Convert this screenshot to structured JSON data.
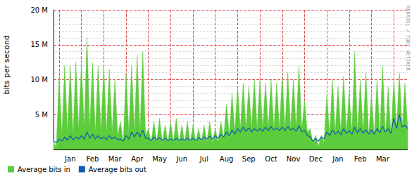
{
  "chart_data": {
    "type": "line",
    "y_label": "bits per second",
    "annotation": "RRDTOOL / TOBI OETIKER",
    "categories": [
      null,
      null,
      null,
      null,
      null,
      null,
      "Jan",
      null,
      null,
      null,
      null,
      null,
      null,
      null,
      "Feb",
      null,
      null,
      null,
      null,
      null,
      null,
      null,
      "Mar",
      null,
      null,
      null,
      null,
      null,
      null,
      null,
      "Apr",
      null,
      null,
      null,
      null,
      null,
      null,
      null,
      "May",
      null,
      null,
      null,
      null,
      null,
      null,
      null,
      "Jun",
      null,
      null,
      null,
      null,
      null,
      null,
      null,
      "Jul",
      null,
      null,
      null,
      null,
      null,
      null,
      null,
      "Aug",
      null,
      null,
      null,
      null,
      null,
      null,
      null,
      "Sep",
      null,
      null,
      null,
      null,
      null,
      null,
      null,
      "Oct",
      null,
      null,
      null,
      null,
      null,
      null,
      null,
      "Nov",
      null,
      null,
      null,
      null,
      null,
      null,
      null,
      "Dec",
      null,
      null,
      null,
      null,
      null,
      null,
      null,
      "Jan",
      null,
      null,
      null,
      null,
      null,
      null,
      null,
      "Feb",
      null,
      null,
      null,
      null,
      null,
      null,
      null,
      "Mar",
      null,
      null,
      null,
      null,
      null,
      null,
      null,
      null,
      null
    ],
    "series": [
      {
        "name": "Average bits in",
        "type": "area",
        "color": "#5ccc3c",
        "values": [
          1.2,
          0.3,
          10.5,
          2,
          12,
          2.5,
          12,
          2,
          12.5,
          3,
          12.5,
          3,
          16,
          3,
          12.5,
          2.5,
          12,
          2.5,
          12,
          2.5,
          11.5,
          2.5,
          10,
          2,
          4,
          1,
          11,
          2.5,
          12,
          2.5,
          13.5,
          2.5,
          14,
          2,
          3,
          1,
          4,
          1,
          4.5,
          1,
          3.5,
          1,
          4,
          1,
          4.5,
          1,
          3.5,
          1,
          4,
          1,
          3.5,
          1,
          3,
          1,
          3.5,
          1,
          4,
          1,
          3,
          1,
          4,
          1.5,
          6.5,
          2,
          8,
          2.5,
          9,
          3,
          9.5,
          3,
          9,
          3,
          10,
          3,
          10,
          3,
          9.5,
          3,
          10,
          3,
          9.5,
          3,
          10.5,
          3,
          11,
          3,
          10,
          3,
          12,
          3,
          7,
          2.5,
          3,
          1,
          2,
          0.5,
          2,
          1,
          8,
          2,
          10,
          2.5,
          9,
          2.5,
          10.5,
          2.5,
          8,
          2.5,
          14,
          2.5,
          10,
          2.5,
          11,
          2,
          8,
          2,
          10,
          2,
          12,
          2,
          9,
          2,
          10,
          3,
          11,
          3,
          9.5,
          3
        ]
      },
      {
        "name": "Average bits out",
        "type": "line",
        "color": "#0d5fb0",
        "values": [
          1.2,
          1.0,
          1.5,
          1.2,
          1.8,
          1.3,
          2,
          1.4,
          1.8,
          1.5,
          2,
          1.5,
          2.5,
          1.6,
          2.2,
          1.5,
          2,
          1.5,
          1.8,
          1.4,
          2,
          1.5,
          1.8,
          1.4,
          1.5,
          1.2,
          2,
          1.5,
          2.5,
          1.8,
          2.5,
          1.8,
          2.8,
          1.6,
          1.6,
          1.3,
          1.8,
          1.4,
          1.7,
          1.3,
          1.6,
          1.3,
          1.5,
          1.3,
          1.6,
          1.3,
          1.5,
          1.3,
          1.6,
          1.3,
          1.6,
          1.3,
          1.7,
          1.4,
          1.8,
          1.5,
          1.9,
          1.5,
          2,
          1.6,
          2.2,
          1.8,
          2.5,
          2,
          2.8,
          2.2,
          3,
          2.5,
          3.2,
          2.6,
          3.1,
          2.5,
          3,
          2.6,
          3,
          2.6,
          3.2,
          2.7,
          3.3,
          2.8,
          3.1,
          2.7,
          3.2,
          2.7,
          3.3,
          2.8,
          3,
          2.6,
          3.4,
          2.5,
          2.8,
          2,
          1.8,
          1.2,
          1.6,
          1.2,
          1.8,
          1.5,
          2.5,
          2,
          2.8,
          2.2,
          2.6,
          2.1,
          3,
          2.3,
          2.7,
          2.2,
          3.2,
          2.4,
          3,
          2.3,
          2.8,
          2.2,
          2.8,
          2.2,
          3,
          2.4,
          3.3,
          2.5,
          3,
          2.3,
          4.5,
          3,
          5,
          3.2,
          3.5,
          3
        ]
      }
    ],
    "ylim": [
      0,
      20
    ],
    "yticks": [
      {
        "value": 5,
        "label": "5 M"
      },
      {
        "value": 10,
        "label": "10 M"
      },
      {
        "value": 15,
        "label": "15 M"
      },
      {
        "value": 20,
        "label": "20 M"
      }
    ],
    "grid": true,
    "legend": "bottom left"
  }
}
